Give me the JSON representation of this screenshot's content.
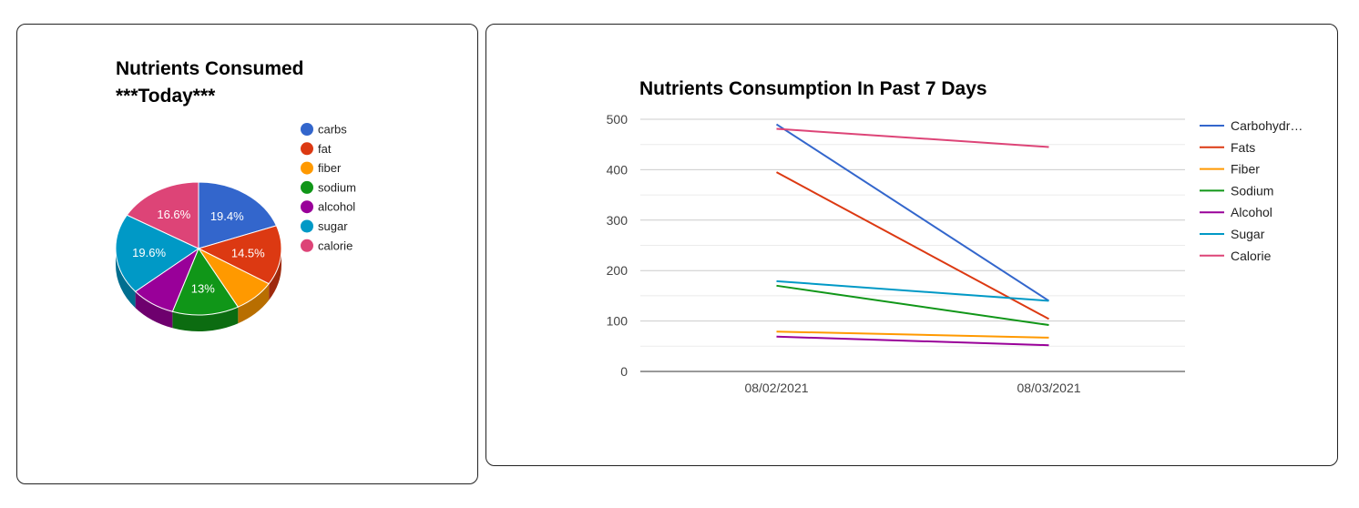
{
  "chart_data": [
    {
      "type": "pie",
      "title_lines": [
        "Nutrients Consumed",
        "***Today***"
      ],
      "is3D": true,
      "legend_position": "right",
      "slices": [
        {
          "label": "carbs",
          "value": 19.4,
          "color": "#3366cc",
          "pct_label": "19.4%"
        },
        {
          "label": "fat",
          "value": 14.5,
          "color": "#dc3912",
          "pct_label": "14.5%"
        },
        {
          "label": "fiber",
          "value": 8.2,
          "color": "#ff9900",
          "pct_label": ""
        },
        {
          "label": "sodium",
          "value": 13.0,
          "color": "#109618",
          "pct_label": "13%"
        },
        {
          "label": "alcohol",
          "value": 8.7,
          "color": "#990099",
          "pct_label": ""
        },
        {
          "label": "sugar",
          "value": 19.6,
          "color": "#0099c6",
          "pct_label": "19.6%"
        },
        {
          "label": "calorie",
          "value": 16.6,
          "color": "#dd4477",
          "pct_label": "16.6%"
        }
      ]
    },
    {
      "type": "line",
      "title": "Nutrients Consumption In Past 7 Days",
      "x": [
        "08/02/2021",
        "08/03/2021"
      ],
      "ylim": [
        0,
        500
      ],
      "yticks": [
        "0",
        "100",
        "200",
        "300",
        "400",
        "500"
      ],
      "grid": true,
      "legend_position": "right",
      "series": [
        {
          "name": "Carbohydr…",
          "color": "#3366cc",
          "values": [
            490,
            140
          ]
        },
        {
          "name": "Fats",
          "color": "#dc3912",
          "values": [
            395,
            104
          ]
        },
        {
          "name": "Fiber",
          "color": "#ff9900",
          "values": [
            79,
            67
          ]
        },
        {
          "name": "Sodium",
          "color": "#109618",
          "values": [
            170,
            92
          ]
        },
        {
          "name": "Alcohol",
          "color": "#990099",
          "values": [
            69,
            52
          ]
        },
        {
          "name": "Sugar",
          "color": "#0099c6",
          "values": [
            179,
            140
          ]
        },
        {
          "name": "Calorie",
          "color": "#dd4477",
          "values": [
            481,
            445
          ]
        }
      ]
    }
  ]
}
